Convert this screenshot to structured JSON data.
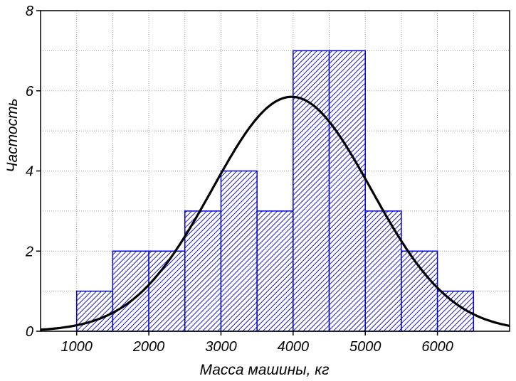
{
  "chart_data": {
    "type": "bar",
    "title": "",
    "xlabel": "Масса машины,  кг",
    "ylabel": "Частость",
    "bins": [
      {
        "from": 1000,
        "to": 1500,
        "count": 1
      },
      {
        "from": 1500,
        "to": 2000,
        "count": 2
      },
      {
        "from": 2000,
        "to": 2500,
        "count": 2
      },
      {
        "from": 2500,
        "to": 3000,
        "count": 3
      },
      {
        "from": 3000,
        "to": 3500,
        "count": 4
      },
      {
        "from": 3500,
        "to": 4000,
        "count": 3
      },
      {
        "from": 4000,
        "to": 4500,
        "count": 7
      },
      {
        "from": 4500,
        "to": 5000,
        "count": 7
      },
      {
        "from": 5000,
        "to": 5500,
        "count": 3
      },
      {
        "from": 5500,
        "to": 6000,
        "count": 2
      },
      {
        "from": 6000,
        "to": 6500,
        "count": 1
      }
    ],
    "fit_curve": {
      "type": "normal",
      "mean": 3980,
      "sd": 1100,
      "peak": 5.85
    },
    "xlim": [
      500,
      7000
    ],
    "ylim": [
      0,
      8
    ],
    "x_ticks": [
      1000,
      2000,
      3000,
      4000,
      5000,
      6000
    ],
    "x_tick_labels": [
      "1000",
      "2000",
      "3000",
      "4000",
      "5000",
      "6000"
    ],
    "y_ticks": [
      0,
      2,
      4,
      6,
      8
    ],
    "y_tick_labels": [
      "0",
      "2",
      "4",
      "6",
      "8"
    ],
    "x_grid_step": 500,
    "y_grid_step": 1,
    "grid": true,
    "legend": "none",
    "colors": {
      "bar_stroke": "#0000d8",
      "bar_hatch": "#1a1ad0",
      "curve": "#000000",
      "grid": "#9a9a9a",
      "frame": "#000000"
    }
  }
}
